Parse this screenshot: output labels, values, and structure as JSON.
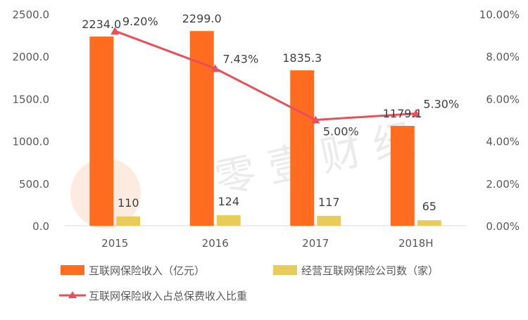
{
  "chart_data": {
    "type": "bar",
    "categories": [
      "2015",
      "2016",
      "2017",
      "2018H"
    ],
    "series": [
      {
        "name": "互联网保险收入（亿元）",
        "kind": "bar",
        "axis": "left",
        "color": "#FF6B1F",
        "values": [
          2234.0,
          2299.0,
          1835.3,
          1179.1
        ],
        "labels": [
          "2234.0",
          "2299.0",
          "1835.3",
          "1179.1"
        ]
      },
      {
        "name": "经营互联网保险公司数（家）",
        "kind": "bar",
        "axis": "left",
        "color": "#E8CC5A",
        "values": [
          110,
          124,
          117,
          65
        ],
        "labels": [
          "110",
          "124",
          "117",
          "65"
        ]
      },
      {
        "name": "互联网保险收入占总保费收入比重",
        "kind": "line",
        "axis": "right",
        "color": "#E8505B",
        "values": [
          9.2,
          7.43,
          5.0,
          5.3
        ],
        "labels": [
          "9.20%",
          "7.43%",
          "5.00%",
          "5.30%"
        ]
      }
    ],
    "y_left": {
      "min": 0,
      "max": 2500,
      "ticks": [
        "0.0",
        "500.0",
        "1000.0",
        "1500.0",
        "2000.0",
        "2500.0"
      ]
    },
    "y_right": {
      "min": 0,
      "max": 10,
      "ticks": [
        "0.00%",
        "2.00%",
        "4.00%",
        "6.00%",
        "8.00%",
        "10.00%"
      ]
    },
    "grid": false,
    "legend_placement": "bottom",
    "watermark_text": "零 壹 财 经"
  }
}
